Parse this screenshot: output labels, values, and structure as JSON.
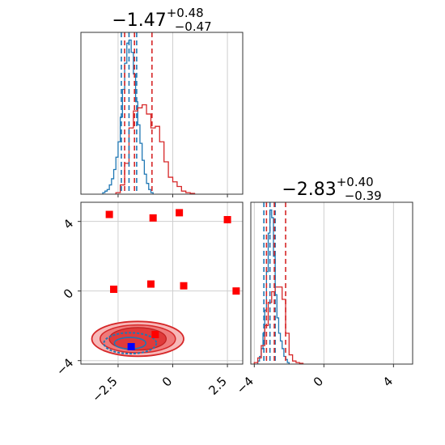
{
  "chart_data": [
    {
      "type": "histogram",
      "panel": "marginal-1",
      "title": {
        "value": "−1.47",
        "upper": "+0.48",
        "lower": "−0.47"
      },
      "xlim": [
        -4.2,
        3.2
      ],
      "ylim": [
        0,
        1.05
      ],
      "grid": true,
      "x_ticks": [
        -2.5,
        0.0,
        2.5
      ],
      "series": [
        {
          "color": "#1f77b4",
          "edges": [
            -3.2,
            -3.1,
            -3.0,
            -2.9,
            -2.8,
            -2.7,
            -2.6,
            -2.5,
            -2.4,
            -2.3,
            -2.2,
            -2.1,
            -2.0,
            -1.9,
            -1.8,
            -1.7,
            -1.6,
            -1.5,
            -1.4,
            -1.3,
            -1.2,
            -1.1,
            -1.0,
            -0.9
          ],
          "heights": [
            0.01,
            0.02,
            0.03,
            0.06,
            0.1,
            0.16,
            0.24,
            0.34,
            0.5,
            0.68,
            0.85,
            0.98,
            1.0,
            0.92,
            0.78,
            0.6,
            0.45,
            0.33,
            0.22,
            0.13,
            0.07,
            0.03,
            0.01
          ]
        },
        {
          "color": "#d62728",
          "edges": [
            -2.6,
            -2.4,
            -2.2,
            -2.0,
            -1.8,
            -1.6,
            -1.4,
            -1.2,
            -1.0,
            -0.8,
            -0.6,
            -0.4,
            -0.2,
            0.0,
            0.2,
            0.4,
            0.6,
            0.8,
            1.0
          ],
          "heights": [
            0.01,
            0.06,
            0.2,
            0.43,
            0.54,
            0.56,
            0.58,
            0.52,
            0.43,
            0.44,
            0.34,
            0.21,
            0.11,
            0.08,
            0.05,
            0.02,
            0.01,
            0.005
          ]
        }
      ],
      "quantile_lines": [
        {
          "color": "#1f77b4",
          "values": [
            -2.35,
            -2.0,
            -1.65
          ]
        },
        {
          "color": "#d62728",
          "values": [
            -2.2,
            -1.75,
            -0.95
          ]
        }
      ]
    },
    {
      "type": "histogram",
      "panel": "marginal-2",
      "title": {
        "value": "−2.83",
        "upper": "+0.40",
        "lower": "−0.39"
      },
      "xlim": [
        -4.2,
        5.1
      ],
      "ylim": [
        0,
        1.05
      ],
      "grid": true,
      "x_ticks": [
        -4,
        0,
        4
      ],
      "series": [
        {
          "color": "#1f77b4",
          "edges": [
            -3.8,
            -3.7,
            -3.6,
            -3.5,
            -3.4,
            -3.3,
            -3.2,
            -3.1,
            -3.0,
            -2.9,
            -2.8,
            -2.7,
            -2.6,
            -2.5,
            -2.4,
            -2.3,
            -2.2,
            -2.1,
            -2.0
          ],
          "heights": [
            0.02,
            0.05,
            0.1,
            0.2,
            0.35,
            0.6,
            0.85,
            1.0,
            0.95,
            0.7,
            0.45,
            0.3,
            0.2,
            0.15,
            0.1,
            0.05,
            0.03,
            0.01
          ]
        },
        {
          "color": "#d62728",
          "edges": [
            -4.0,
            -3.8,
            -3.6,
            -3.4,
            -3.2,
            -3.0,
            -2.8,
            -2.6,
            -2.4,
            -2.2,
            -2.0,
            -1.8,
            -1.6,
            -1.4,
            -1.2
          ],
          "heights": [
            0.01,
            0.04,
            0.12,
            0.25,
            0.4,
            0.47,
            0.5,
            0.5,
            0.42,
            0.2,
            0.06,
            0.02,
            0.01,
            0.005
          ]
        }
      ],
      "quantile_lines": [
        {
          "color": "#1f77b4",
          "values": [
            -3.45,
            -3.1,
            -2.8
          ]
        },
        {
          "color": "#d62728",
          "values": [
            -3.3,
            -2.85,
            -2.2
          ]
        }
      ]
    },
    {
      "type": "scatter",
      "panel": "joint",
      "xlim": [
        -4.2,
        3.2
      ],
      "ylim": [
        -4.2,
        5.1
      ],
      "grid": true,
      "x_ticks": [
        -2.5,
        0.0,
        2.5
      ],
      "y_ticks": [
        -4,
        0,
        4
      ],
      "red_squares": [
        [
          -2.9,
          4.4
        ],
        [
          -0.9,
          4.2
        ],
        [
          0.3,
          4.5
        ],
        [
          2.5,
          4.1
        ],
        [
          -2.7,
          0.1
        ],
        [
          -1.0,
          0.4
        ],
        [
          0.5,
          0.3
        ],
        [
          2.9,
          0.0
        ],
        [
          -0.8,
          -2.5
        ]
      ],
      "blue_square": [
        -1.9,
        -3.2
      ],
      "red_contours": {
        "center": [
          -1.6,
          -2.75
        ],
        "outer_radius": [
          2.1,
          1.0
        ],
        "inner_radius": [
          1.3,
          0.65
        ]
      },
      "blue_contours": {
        "center": [
          -1.95,
          -3.0
        ],
        "radius": [
          1.2,
          0.6
        ]
      }
    }
  ]
}
